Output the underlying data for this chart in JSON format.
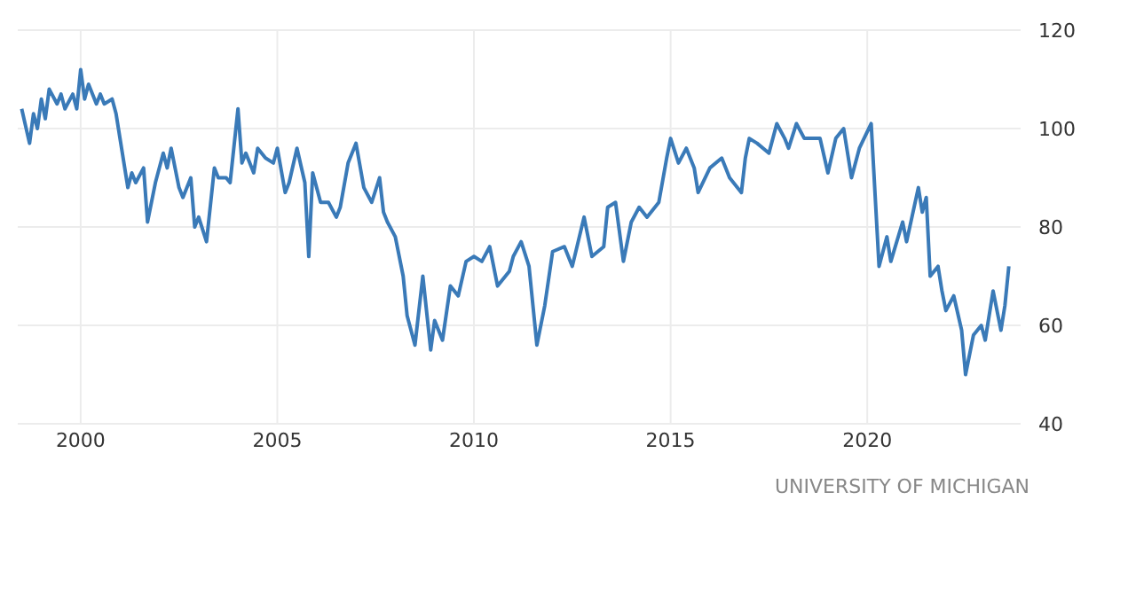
{
  "chart_data": {
    "type": "line",
    "annotations": [
      "UNIVERSITY OF MICHIGAN"
    ],
    "xlim": [
      1998.4,
      2023.9
    ],
    "xticks": [
      2000,
      2005,
      2010,
      2015,
      2020
    ],
    "ylim": [
      40,
      120
    ],
    "yticks": [
      40,
      60,
      80,
      100,
      120
    ],
    "grid": true,
    "series": [
      {
        "color": "#3a7ab8",
        "x": [
          1998.5,
          1998.7,
          1998.8,
          1998.9,
          1999.0,
          1999.1,
          1999.2,
          1999.4,
          1999.5,
          1999.6,
          1999.8,
          1999.9,
          2000.0,
          2000.1,
          2000.2,
          2000.4,
          2000.5,
          2000.6,
          2000.8,
          2000.9,
          2001.0,
          2001.2,
          2001.3,
          2001.4,
          2001.6,
          2001.7,
          2001.9,
          2002.1,
          2002.2,
          2002.3,
          2002.5,
          2002.6,
          2002.8,
          2002.9,
          2003.0,
          2003.2,
          2003.4,
          2003.5,
          2003.7,
          2003.8,
          2004.0,
          2004.1,
          2004.2,
          2004.4,
          2004.5,
          2004.7,
          2004.9,
          2005.0,
          2005.2,
          2005.3,
          2005.5,
          2005.7,
          2005.8,
          2005.9,
          2006.1,
          2006.3,
          2006.5,
          2006.6,
          2006.8,
          2007.0,
          2007.2,
          2007.4,
          2007.6,
          2007.7,
          2007.8,
          2008.0,
          2008.2,
          2008.3,
          2008.5,
          2008.7,
          2008.9,
          2009.0,
          2009.2,
          2009.4,
          2009.6,
          2009.8,
          2010.0,
          2010.2,
          2010.4,
          2010.6,
          2010.9,
          2011.0,
          2011.2,
          2011.4,
          2011.6,
          2011.8,
          2012.0,
          2012.3,
          2012.5,
          2012.8,
          2013.0,
          2013.3,
          2013.4,
          2013.6,
          2013.8,
          2014.0,
          2014.2,
          2014.4,
          2014.7,
          2014.9,
          2015.0,
          2015.2,
          2015.4,
          2015.6,
          2015.7,
          2016.0,
          2016.3,
          2016.5,
          2016.8,
          2016.9,
          2017.0,
          2017.2,
          2017.5,
          2017.7,
          2017.9,
          2018.0,
          2018.2,
          2018.4,
          2018.6,
          2018.8,
          2019.0,
          2019.2,
          2019.4,
          2019.6,
          2019.8,
          2020.1,
          2020.3,
          2020.5,
          2020.6,
          2020.9,
          2021.0,
          2021.3,
          2021.4,
          2021.5,
          2021.6,
          2021.8,
          2021.9,
          2022.0,
          2022.2,
          2022.4,
          2022.5,
          2022.7,
          2022.9,
          2023.0,
          2023.2,
          2023.4,
          2023.5,
          2023.6
        ],
        "values": [
          104,
          97,
          103,
          100,
          106,
          102,
          108,
          105,
          107,
          104,
          107,
          104,
          112,
          106,
          109,
          105,
          107,
          105,
          106,
          103,
          98,
          88,
          91,
          89,
          92,
          81,
          89,
          95,
          92,
          96,
          88,
          86,
          90,
          80,
          82,
          77,
          92,
          90,
          90,
          89,
          104,
          93,
          95,
          91,
          96,
          94,
          93,
          96,
          87,
          89,
          96,
          89,
          74,
          91,
          85,
          85,
          82,
          84,
          93,
          97,
          88,
          85,
          90,
          83,
          81,
          78,
          70,
          62,
          56,
          70,
          55,
          61,
          57,
          68,
          66,
          73,
          74,
          73,
          76,
          68,
          71,
          74,
          77,
          72,
          56,
          64,
          75,
          76,
          72,
          82,
          74,
          76,
          84,
          85,
          73,
          81,
          84,
          82,
          85,
          94,
          98,
          93,
          96,
          92,
          87,
          92,
          94,
          90,
          87,
          94,
          98,
          97,
          95,
          101,
          98,
          96,
          101,
          98,
          98,
          98,
          91,
          98,
          100,
          90,
          96,
          101,
          72,
          78,
          73,
          81,
          77,
          88,
          83,
          86,
          70,
          72,
          67,
          63,
          66,
          59,
          50,
          58,
          60,
          57,
          67,
          59,
          64,
          72
        ]
      }
    ]
  }
}
